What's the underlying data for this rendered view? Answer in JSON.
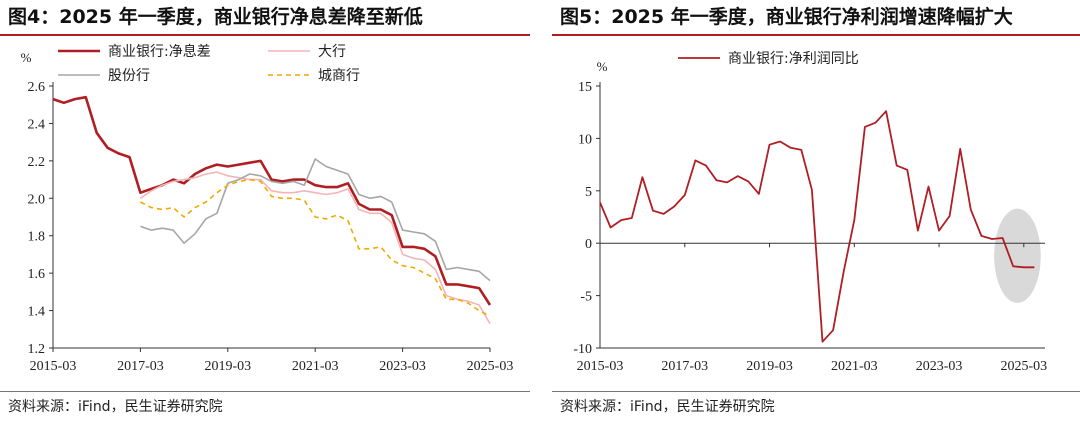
{
  "charts": [
    {
      "title": "图4：2025 年一季度，商业银行净息差降至新低",
      "source": "资料来源：iFind，民生证券研究院",
      "chart_data": {
        "type": "line",
        "unit": "%",
        "x_range": [
          2015.0,
          2025.0
        ],
        "ylim": [
          1.2,
          2.6
        ],
        "yticks": [
          1.2,
          1.4,
          1.6,
          1.8,
          2.0,
          2.2,
          2.4,
          2.6
        ],
        "ytick_labels": [
          "1.2",
          "1.4",
          "1.6",
          "1.8",
          "2.0",
          "2.2",
          "2.4",
          "2.6"
        ],
        "xticks": [
          2015.0,
          2017.0,
          2019.0,
          2021.0,
          2023.0,
          2025.0
        ],
        "xtick_labels": [
          "2015-03",
          "2017-03",
          "2019-03",
          "2021-03",
          "2023-03",
          "2025-03"
        ],
        "legend_position": "top",
        "x": [
          2015.0,
          2015.25,
          2015.5,
          2015.75,
          2016.0,
          2016.25,
          2016.5,
          2016.75,
          2017.0,
          2017.25,
          2017.5,
          2017.75,
          2018.0,
          2018.25,
          2018.5,
          2018.75,
          2019.0,
          2019.25,
          2019.5,
          2019.75,
          2020.0,
          2020.25,
          2020.5,
          2020.75,
          2021.0,
          2021.25,
          2021.5,
          2021.75,
          2022.0,
          2022.25,
          2022.5,
          2022.75,
          2023.0,
          2023.25,
          2023.5,
          2023.75,
          2024.0,
          2024.25,
          2024.5,
          2024.75,
          2025.0
        ],
        "series": [
          {
            "name": "商业银行:净息差",
            "color": "#b01e23",
            "dash": "solid",
            "width": 2.6,
            "values": [
              2.53,
              2.51,
              2.53,
              2.54,
              2.35,
              2.27,
              2.24,
              2.22,
              2.03,
              2.05,
              2.07,
              2.1,
              2.08,
              2.13,
              2.16,
              2.18,
              2.17,
              2.18,
              2.19,
              2.2,
              2.1,
              2.09,
              2.1,
              2.1,
              2.07,
              2.06,
              2.06,
              2.08,
              1.97,
              1.94,
              1.94,
              1.91,
              1.74,
              1.74,
              1.73,
              1.69,
              1.54,
              1.54,
              1.53,
              1.52,
              1.43
            ]
          },
          {
            "name": "大行",
            "color": "#f4b5b8",
            "dash": "solid",
            "width": 1.6,
            "values": [
              null,
              null,
              null,
              null,
              null,
              null,
              null,
              null,
              2.0,
              2.04,
              2.07,
              2.09,
              2.1,
              2.11,
              2.13,
              2.14,
              2.12,
              2.11,
              2.1,
              2.1,
              2.04,
              2.03,
              2.03,
              2.04,
              2.03,
              2.02,
              2.03,
              2.05,
              1.94,
              1.92,
              1.92,
              1.87,
              1.7,
              1.68,
              1.67,
              1.62,
              1.48,
              1.46,
              1.45,
              1.43,
              1.33
            ]
          },
          {
            "name": "股份行",
            "color": "#a6a6a6",
            "dash": "solid",
            "width": 1.6,
            "values": [
              null,
              null,
              null,
              null,
              null,
              null,
              null,
              null,
              1.85,
              1.83,
              1.84,
              1.83,
              1.76,
              1.81,
              1.89,
              1.92,
              2.08,
              2.1,
              2.13,
              2.12,
              2.09,
              2.08,
              2.09,
              2.07,
              2.21,
              2.17,
              2.15,
              2.13,
              2.02,
              2.0,
              2.01,
              1.98,
              1.83,
              1.82,
              1.81,
              1.77,
              1.62,
              1.63,
              1.62,
              1.61,
              1.56
            ]
          },
          {
            "name": "城商行",
            "color": "#f2a900",
            "dash": "5,4",
            "width": 1.6,
            "values": [
              null,
              null,
              null,
              null,
              null,
              null,
              null,
              null,
              1.98,
              1.95,
              1.94,
              1.95,
              1.9,
              1.95,
              1.98,
              2.03,
              2.07,
              2.09,
              2.1,
              2.09,
              2.01,
              2.0,
              2.0,
              1.99,
              1.9,
              1.89,
              1.91,
              1.88,
              1.73,
              1.73,
              1.74,
              1.67,
              1.64,
              1.63,
              1.6,
              1.57,
              1.46,
              1.46,
              1.44,
              1.4,
              1.37
            ]
          }
        ]
      }
    },
    {
      "title": "图5：2025 年一季度，商业银行净利润增速降幅扩大",
      "source": "资料来源：iFind，民生证券研究院",
      "chart_data": {
        "type": "line",
        "unit": "%",
        "x_range": [
          2015.0,
          2025.5
        ],
        "ylim": [
          -10,
          15
        ],
        "yticks": [
          -10,
          -5,
          0,
          5,
          10,
          15
        ],
        "ytick_labels": [
          "-10",
          "-5",
          "0",
          "5",
          "10",
          "15"
        ],
        "xticks": [
          2015.0,
          2017.0,
          2019.0,
          2021.0,
          2023.0,
          2025.0
        ],
        "xtick_labels": [
          "2015-03",
          "2017-03",
          "2019-03",
          "2021-03",
          "2023-03",
          "2025-03"
        ],
        "legend_position": "top",
        "highlight": {
          "type": "ellipse",
          "x_center": 2024.85,
          "y_center": -1.2,
          "x_radius": 0.55,
          "y_radius": 4.5,
          "color": "#d9d9d9"
        },
        "x": [
          2015.0,
          2015.25,
          2015.5,
          2015.75,
          2016.0,
          2016.25,
          2016.5,
          2016.75,
          2017.0,
          2017.25,
          2017.5,
          2017.75,
          2018.0,
          2018.25,
          2018.5,
          2018.75,
          2019.0,
          2019.25,
          2019.5,
          2019.75,
          2020.0,
          2020.25,
          2020.5,
          2020.75,
          2021.0,
          2021.25,
          2021.5,
          2021.75,
          2022.0,
          2022.25,
          2022.5,
          2022.75,
          2023.0,
          2023.25,
          2023.5,
          2023.75,
          2024.0,
          2024.25,
          2024.5,
          2024.75,
          2025.0,
          2025.25
        ],
        "series": [
          {
            "name": "商业银行:净利润同比",
            "color": "#b01e23",
            "dash": "solid",
            "width": 1.8,
            "values": [
              3.9,
              1.5,
              2.2,
              2.4,
              6.3,
              3.1,
              2.8,
              3.5,
              4.6,
              7.9,
              7.4,
              6.0,
              5.8,
              6.4,
              5.9,
              4.7,
              9.4,
              9.7,
              9.1,
              8.9,
              5.1,
              -9.4,
              -8.3,
              -2.7,
              2.2,
              11.1,
              11.5,
              12.6,
              7.4,
              7.0,
              1.2,
              5.4,
              1.2,
              2.6,
              9.0,
              3.2,
              0.7,
              0.4,
              0.5,
              -2.2,
              -2.3,
              -2.3
            ]
          }
        ]
      }
    }
  ]
}
